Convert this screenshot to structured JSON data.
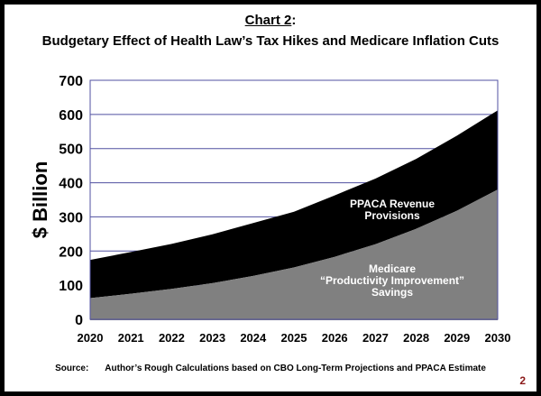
{
  "header": {
    "chart_label": "Chart 2",
    "chart_label_suffix": ":",
    "subtitle": "Budgetary Effect of Health Law’s Tax Hikes and Medicare Inflation Cuts"
  },
  "chart_data": {
    "type": "area",
    "stacked": true,
    "x": [
      "2020",
      "2021",
      "2022",
      "2023",
      "2024",
      "2025",
      "2026",
      "2027",
      "2028",
      "2029",
      "2030"
    ],
    "series": [
      {
        "name": "Medicare “Productivity Improvement” Savings",
        "label_lines": [
          "Medicare",
          "“Productivity Improvement”",
          "Savings"
        ],
        "values": [
          62,
          75,
          89,
          106,
          127,
          152,
          183,
          220,
          265,
          318,
          380
        ],
        "color": "#808080"
      },
      {
        "name": "PPACA Revenue Provisions",
        "label_lines": [
          "PPACA Revenue",
          "Provisions"
        ],
        "values": [
          112,
          122,
          132,
          143,
          155,
          163,
          180,
          192,
          205,
          220,
          232
        ],
        "color": "#000000"
      }
    ],
    "stacked_totals": [
      174,
      197,
      221,
      249,
      282,
      315,
      363,
      412,
      470,
      538,
      612
    ],
    "ylabel": "$ Billion",
    "ylim": [
      0,
      700
    ],
    "yticks": [
      "0",
      "100",
      "200",
      "300",
      "400",
      "500",
      "600",
      "700"
    ],
    "grid": true,
    "grid_color": "#5050a0"
  },
  "footer": {
    "source_label": "Source:",
    "source_text": "Author’s Rough Calculations based on CBO Long-Term Projections and PPACA Estimate",
    "page_number": "2"
  }
}
